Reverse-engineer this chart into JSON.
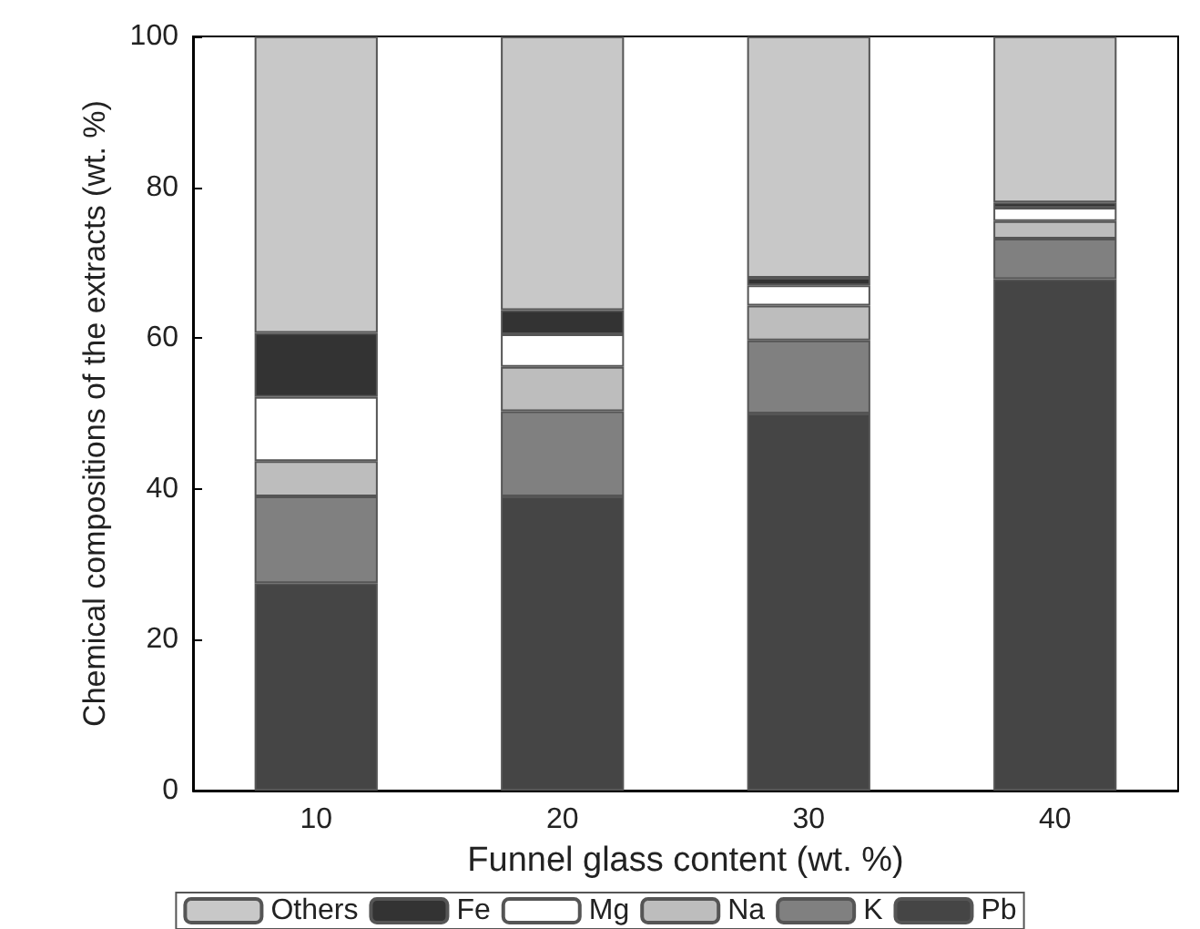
{
  "chart_data": {
    "type": "bar",
    "stacked": true,
    "xlabel": "Funnel glass content (wt. %)",
    "ylabel": "Chemical compositions of the extracts (wt. %)",
    "categories": [
      "10",
      "20",
      "30",
      "40"
    ],
    "series": [
      {
        "name": "Pb",
        "color": "#454545",
        "values": [
          27.5,
          39,
          50,
          67.8
        ]
      },
      {
        "name": "K",
        "color": "#808080",
        "values": [
          11.5,
          11.3,
          9.7,
          5.4
        ]
      },
      {
        "name": "Na",
        "color": "#bdbdbd",
        "values": [
          4.7,
          5.9,
          4.6,
          2.3
        ]
      },
      {
        "name": "Mg",
        "color": "#ffffff",
        "values": [
          8.5,
          4.3,
          2.7,
          1.8
        ]
      },
      {
        "name": "Fe",
        "color": "#333333",
        "values": [
          8.5,
          3.2,
          1.0,
          0.7
        ]
      },
      {
        "name": "Others",
        "color": "#c8c8c8",
        "values": [
          39.3,
          36.3,
          32,
          22
        ]
      }
    ],
    "ylim": [
      0,
      100
    ],
    "yticks": [
      0,
      20,
      40,
      60,
      80,
      100
    ],
    "grid": false,
    "legend": "bottom"
  }
}
